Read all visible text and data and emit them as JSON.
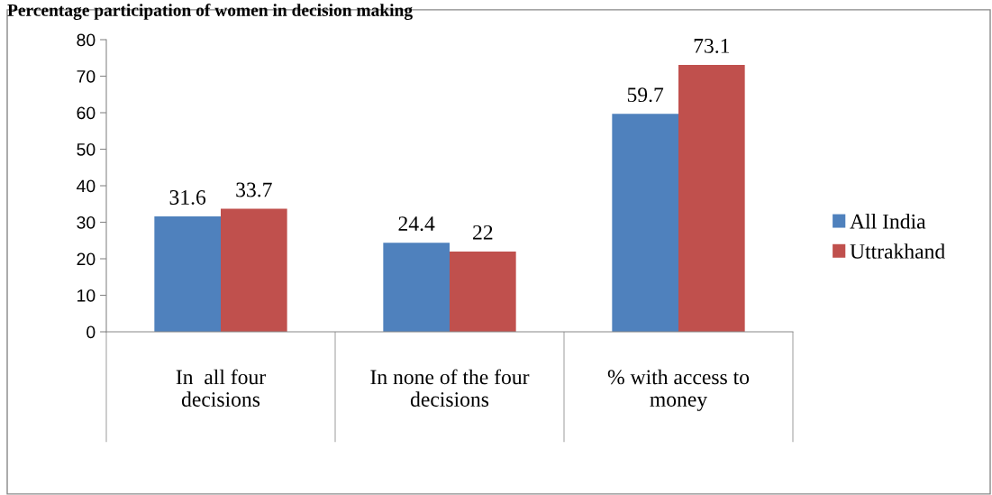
{
  "chart_data": {
    "type": "bar",
    "title": "Percentage participation of women in decision making",
    "categories": [
      "In  all four\ndecisions",
      "In none of the four\ndecisions",
      "% with access to\nmoney"
    ],
    "series": [
      {
        "name": "All India",
        "color": "#4f81bd",
        "values": [
          31.6,
          24.4,
          59.7
        ]
      },
      {
        "name": "Uttrakhand",
        "color": "#c0504d",
        "values": [
          33.7,
          22,
          73.1
        ]
      }
    ],
    "ylim": [
      0,
      80
    ],
    "yticks": [
      0,
      10,
      20,
      30,
      40,
      50,
      60,
      70,
      80
    ],
    "grid": false,
    "legend": "right",
    "data_labels": true
  }
}
